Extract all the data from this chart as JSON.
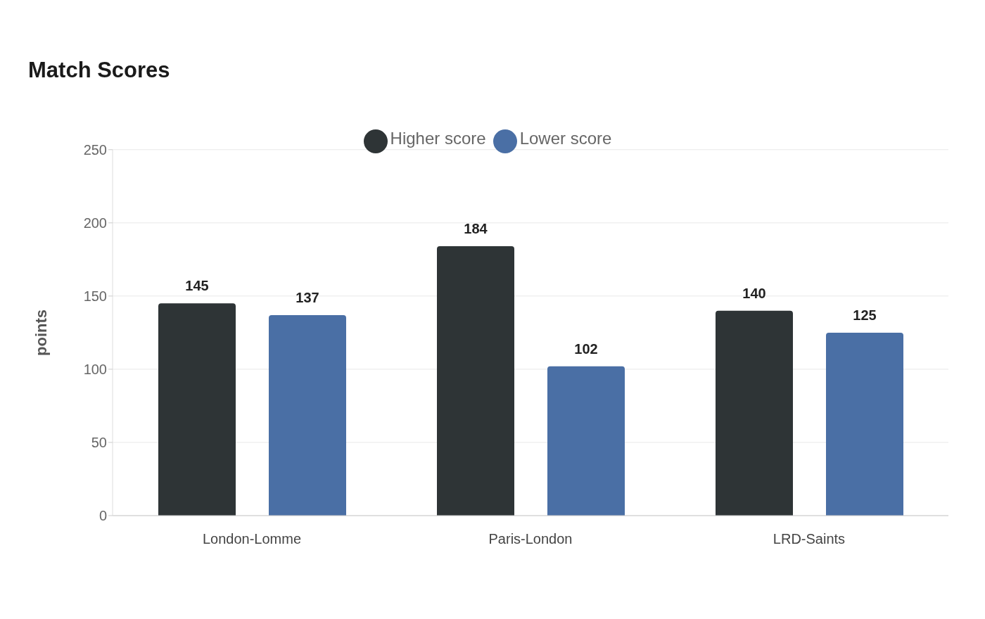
{
  "chart_data": {
    "type": "bar",
    "title": "Match Scores",
    "ylabel": "points",
    "categories": [
      "London-Lomme",
      "Paris-London",
      "LRD-Saints"
    ],
    "series": [
      {
        "name": "Higher score",
        "color": "#2e3436",
        "values": [
          145,
          184,
          140
        ]
      },
      {
        "name": "Lower score",
        "color": "#4a6fa5",
        "values": [
          137,
          102,
          125
        ]
      }
    ],
    "ylim": [
      0,
      250
    ],
    "yticks": [
      0,
      50,
      100,
      150,
      200,
      250
    ],
    "grid": "y",
    "legend": "top",
    "data_labels": true
  }
}
